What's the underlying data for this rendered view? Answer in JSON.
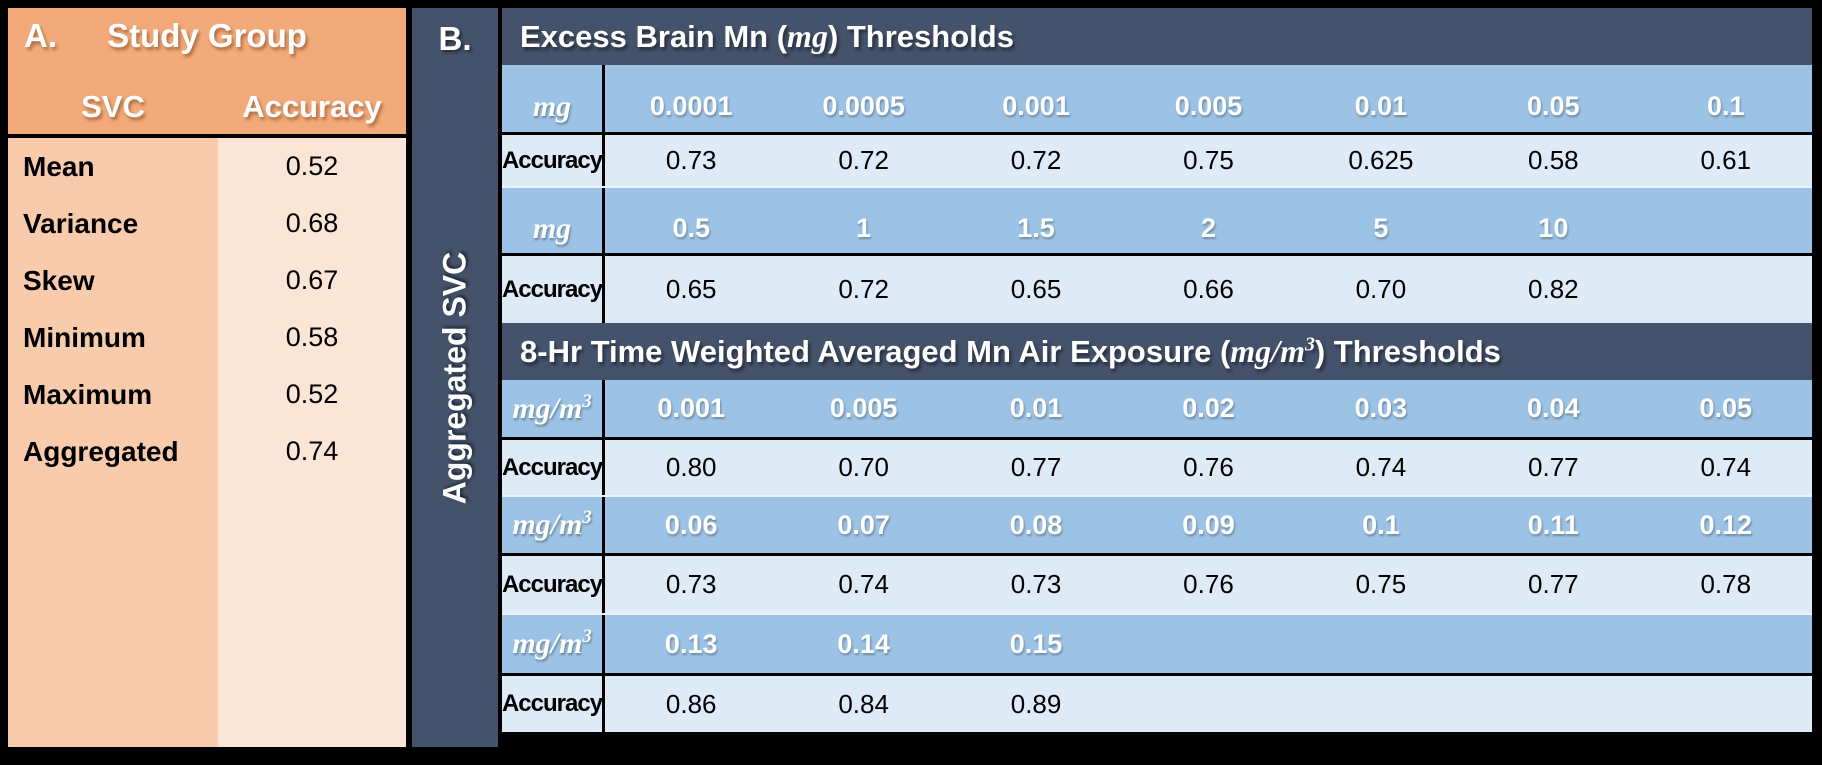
{
  "panel_a": {
    "letter": "A.",
    "title": "Study Group",
    "col_headers": [
      "SVC",
      "Accuracy"
    ],
    "rows": [
      {
        "label": "Mean",
        "value": "0.52"
      },
      {
        "label": "Variance",
        "value": "0.68"
      },
      {
        "label": "Skew",
        "value": "0.67"
      },
      {
        "label": "Minimum",
        "value": "0.58"
      },
      {
        "label": "Maximum",
        "value": "0.52"
      },
      {
        "label": "Aggregated",
        "value": "0.74"
      }
    ]
  },
  "panel_b": {
    "letter": "B.",
    "side_label": "Aggregated SVC",
    "rows": [
      {
        "type": "section_header",
        "prefix": "Excess Brain Mn (",
        "unit_base": "mg",
        "unit_sup": "",
        "suffix": ") Thresholds"
      },
      {
        "type": "unit",
        "unit_base": "mg",
        "unit_sup": "",
        "cells": [
          "0.0001",
          "0.0005",
          "0.001",
          "0.005",
          "0.01",
          "0.05",
          "0.1"
        ]
      },
      {
        "type": "accuracy",
        "label": "Accuracy",
        "cells": [
          "0.73",
          "0.72",
          "0.72",
          "0.75",
          "0.625",
          "0.58",
          "0.61"
        ]
      },
      {
        "type": "unit",
        "unit_base": "mg",
        "unit_sup": "",
        "cells": [
          "0.5",
          "1",
          "1.5",
          "2",
          "5",
          "10",
          ""
        ]
      },
      {
        "type": "accuracy",
        "label": "Accuracy",
        "cells": [
          "0.65",
          "0.72",
          "0.65",
          "0.66",
          "0.70",
          "0.82",
          ""
        ]
      },
      {
        "type": "section_header",
        "prefix": "8-Hr Time Weighted Averaged Mn Air Exposure (",
        "unit_base": "mg/m",
        "unit_sup": "3",
        "suffix": ") Thresholds"
      },
      {
        "type": "unit",
        "unit_base": "mg/m",
        "unit_sup": "3",
        "cells": [
          "0.001",
          "0.005",
          "0.01",
          "0.02",
          "0.03",
          "0.04",
          "0.05"
        ]
      },
      {
        "type": "accuracy",
        "label": "Accuracy",
        "cells": [
          "0.80",
          "0.70",
          "0.77",
          "0.76",
          "0.74",
          "0.77",
          "0.74"
        ]
      },
      {
        "type": "unit",
        "unit_base": "mg/m",
        "unit_sup": "3",
        "cells": [
          "0.06",
          "0.07",
          "0.08",
          "0.09",
          "0.1",
          "0.11",
          "0.12"
        ]
      },
      {
        "type": "accuracy",
        "label": "Accuracy",
        "cells": [
          "0.73",
          "0.74",
          "0.73",
          "0.76",
          "0.75",
          "0.77",
          "0.78"
        ]
      },
      {
        "type": "unit",
        "unit_base": "mg/m",
        "unit_sup": "3",
        "cells": [
          "0.13",
          "0.14",
          "0.15",
          "",
          "",
          "",
          ""
        ]
      },
      {
        "type": "accuracy",
        "label": "Accuracy",
        "cells": [
          "0.86",
          "0.84",
          "0.89",
          "",
          "",
          "",
          ""
        ]
      }
    ]
  },
  "colors": {
    "background": "#000000",
    "dark_slate": "#44526B",
    "blue_row": "#9CC3E6",
    "light_blue_row": "#DEEAF6",
    "orange_header": "#F3AA7B",
    "orange_column": "#F8CBAD",
    "orange_column_light": "#FBE5D6",
    "white_text": "#FFFFFF",
    "black_text": "#000000"
  },
  "chart_data": [
    {
      "type": "table",
      "title": "Study Group",
      "columns": [
        "SVC",
        "Accuracy"
      ],
      "rows": [
        [
          "Mean",
          0.52
        ],
        [
          "Variance",
          0.68
        ],
        [
          "Skew",
          0.67
        ],
        [
          "Minimum",
          0.58
        ],
        [
          "Maximum",
          0.52
        ],
        [
          "Aggregated",
          0.74
        ]
      ]
    },
    {
      "type": "table",
      "title": "Excess Brain Mn (mg) Thresholds",
      "xlabel": "mg",
      "ylabel": "Accuracy",
      "x": [
        0.0001,
        0.0005,
        0.001,
        0.005,
        0.01,
        0.05,
        0.1,
        0.5,
        1,
        1.5,
        2,
        5,
        10
      ],
      "accuracy": [
        0.73,
        0.72,
        0.72,
        0.75,
        0.625,
        0.58,
        0.61,
        0.65,
        0.72,
        0.65,
        0.66,
        0.7,
        0.82
      ]
    },
    {
      "type": "table",
      "title": "8-Hr Time Weighted Averaged Mn Air Exposure (mg/m3) Thresholds",
      "xlabel": "mg/m3",
      "ylabel": "Accuracy",
      "x": [
        0.001,
        0.005,
        0.01,
        0.02,
        0.03,
        0.04,
        0.05,
        0.06,
        0.07,
        0.08,
        0.09,
        0.1,
        0.11,
        0.12,
        0.13,
        0.14,
        0.15
      ],
      "accuracy": [
        0.8,
        0.7,
        0.77,
        0.76,
        0.74,
        0.77,
        0.74,
        0.73,
        0.74,
        0.73,
        0.76,
        0.75,
        0.77,
        0.78,
        0.86,
        0.84,
        0.89
      ]
    }
  ]
}
